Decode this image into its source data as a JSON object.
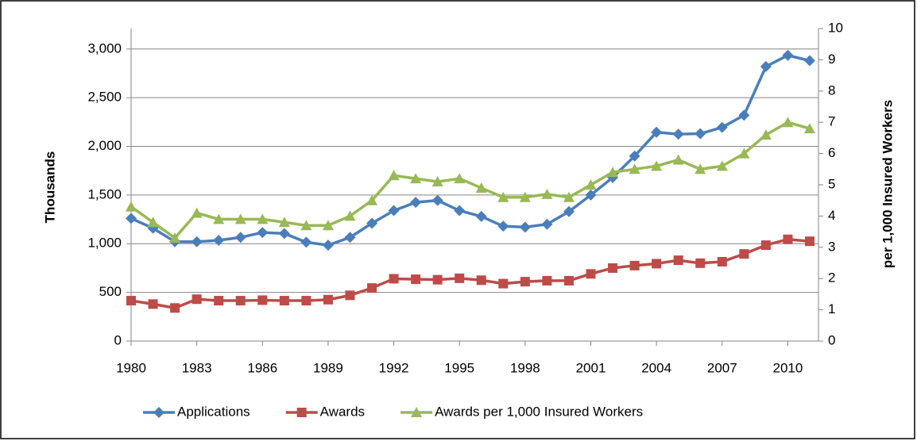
{
  "chart_data": {
    "type": "line",
    "y_label": "Thousands",
    "y2_label": "per 1,000 Insured Workers",
    "x": [
      1980,
      1981,
      1982,
      1983,
      1984,
      1985,
      1986,
      1987,
      1988,
      1989,
      1990,
      1991,
      1992,
      1993,
      1994,
      1995,
      1996,
      1997,
      1998,
      1999,
      2000,
      2001,
      2002,
      2003,
      2004,
      2005,
      2006,
      2007,
      2008,
      2009,
      2010,
      2011
    ],
    "xlim": [
      1980,
      2011.4
    ],
    "xticks": [
      1980,
      1983,
      1986,
      1989,
      1992,
      1995,
      1998,
      2001,
      2004,
      2007,
      2010
    ],
    "ylim": [
      0,
      3210
    ],
    "yticks": [
      0,
      500,
      {
        "value": 1000,
        "label": "1,000"
      },
      {
        "value": 1500,
        "label": "1,500"
      },
      {
        "value": 2000,
        "label": "2,000"
      },
      {
        "value": 2500,
        "label": "2,500"
      },
      {
        "value": 3000,
        "label": "3,000"
      }
    ],
    "y2lim": [
      0,
      10
    ],
    "y2ticks": [
      0,
      1,
      2,
      3,
      4,
      5,
      6,
      7,
      8,
      9,
      10
    ],
    "grid": true,
    "legend": "bottom",
    "series": [
      {
        "name": "Applications",
        "color": "#4a7ebb",
        "marker": "diamond",
        "values": [
          1260,
          1160,
          1020,
          1020,
          1035,
          1065,
          1115,
          1105,
          1015,
          985,
          1065,
          1210,
          1340,
          1425,
          1445,
          1340,
          1280,
          1180,
          1170,
          1200,
          1330,
          1500,
          1680,
          1900,
          2145,
          2125,
          2130,
          2195,
          2320,
          2820,
          2935,
          2880
        ]
      },
      {
        "name": "Awards",
        "color": "#be4b48",
        "marker": "square",
        "values": [
          415,
          380,
          340,
          430,
          415,
          415,
          420,
          415,
          415,
          425,
          470,
          545,
          640,
          635,
          630,
          645,
          625,
          590,
          610,
          620,
          620,
          690,
          750,
          775,
          795,
          830,
          800,
          815,
          895,
          985,
          1045,
          1025
        ]
      },
      {
        "name": "Awards per 1,000 Insured Workers",
        "color": "#98b954",
        "marker": "triangle",
        "axis": "y2",
        "values": [
          4.3,
          3.8,
          3.3,
          4.1,
          3.9,
          3.9,
          3.9,
          3.8,
          3.7,
          3.7,
          4.0,
          4.5,
          5.3,
          5.2,
          5.1,
          5.2,
          4.9,
          4.6,
          4.6,
          4.7,
          4.6,
          5.0,
          5.4,
          5.5,
          5.6,
          5.8,
          5.5,
          5.6,
          6.0,
          6.6,
          7.0,
          6.8
        ]
      }
    ]
  }
}
